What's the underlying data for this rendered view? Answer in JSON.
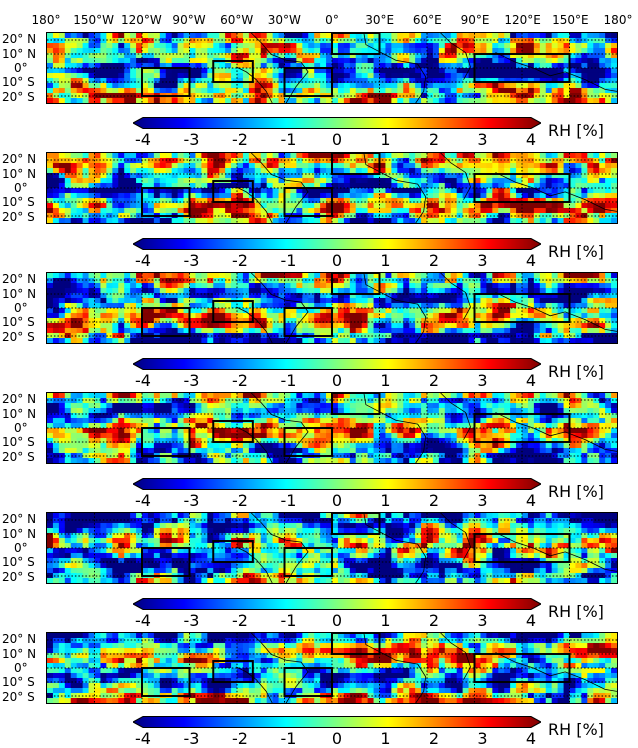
{
  "map": {
    "longitude_labels": [
      "180°",
      "150°W",
      "120°W",
      "90°W",
      "60°W",
      "30°W",
      "0°",
      "30°E",
      "60°E",
      "90°E",
      "120°E",
      "150°E",
      "180°"
    ],
    "latitude_labels": [
      "20° N",
      "10° N",
      "0°",
      "10° S",
      "20° S"
    ],
    "lon_range": [
      -180,
      180
    ],
    "lat_range": [
      -25,
      25
    ],
    "gridlines_dotted": true,
    "boxes": [
      {
        "lon": [
          -120,
          -90
        ],
        "lat": [
          -20,
          0
        ]
      },
      {
        "lon": [
          -75,
          -50
        ],
        "lat": [
          -10,
          5
        ]
      },
      {
        "lon": [
          -30,
          0
        ],
        "lat": [
          -20,
          0
        ]
      },
      {
        "lon": [
          0,
          30
        ],
        "lat": [
          10,
          25
        ]
      },
      {
        "lon": [
          90,
          150
        ],
        "lat": [
          -10,
          10
        ]
      }
    ],
    "panel_count": 6
  },
  "colorbar": {
    "ticks": [
      "-4",
      "-3",
      "-2",
      "-1",
      "0",
      "1",
      "2",
      "3",
      "4"
    ],
    "range": [
      -4,
      4
    ],
    "unit": "RH [%]",
    "colormap": [
      "#00007f",
      "#0000ff",
      "#007fff",
      "#00ffff",
      "#7fff7f",
      "#ffff00",
      "#ff7f00",
      "#ff0000",
      "#7f0000"
    ],
    "extend": "both"
  }
}
